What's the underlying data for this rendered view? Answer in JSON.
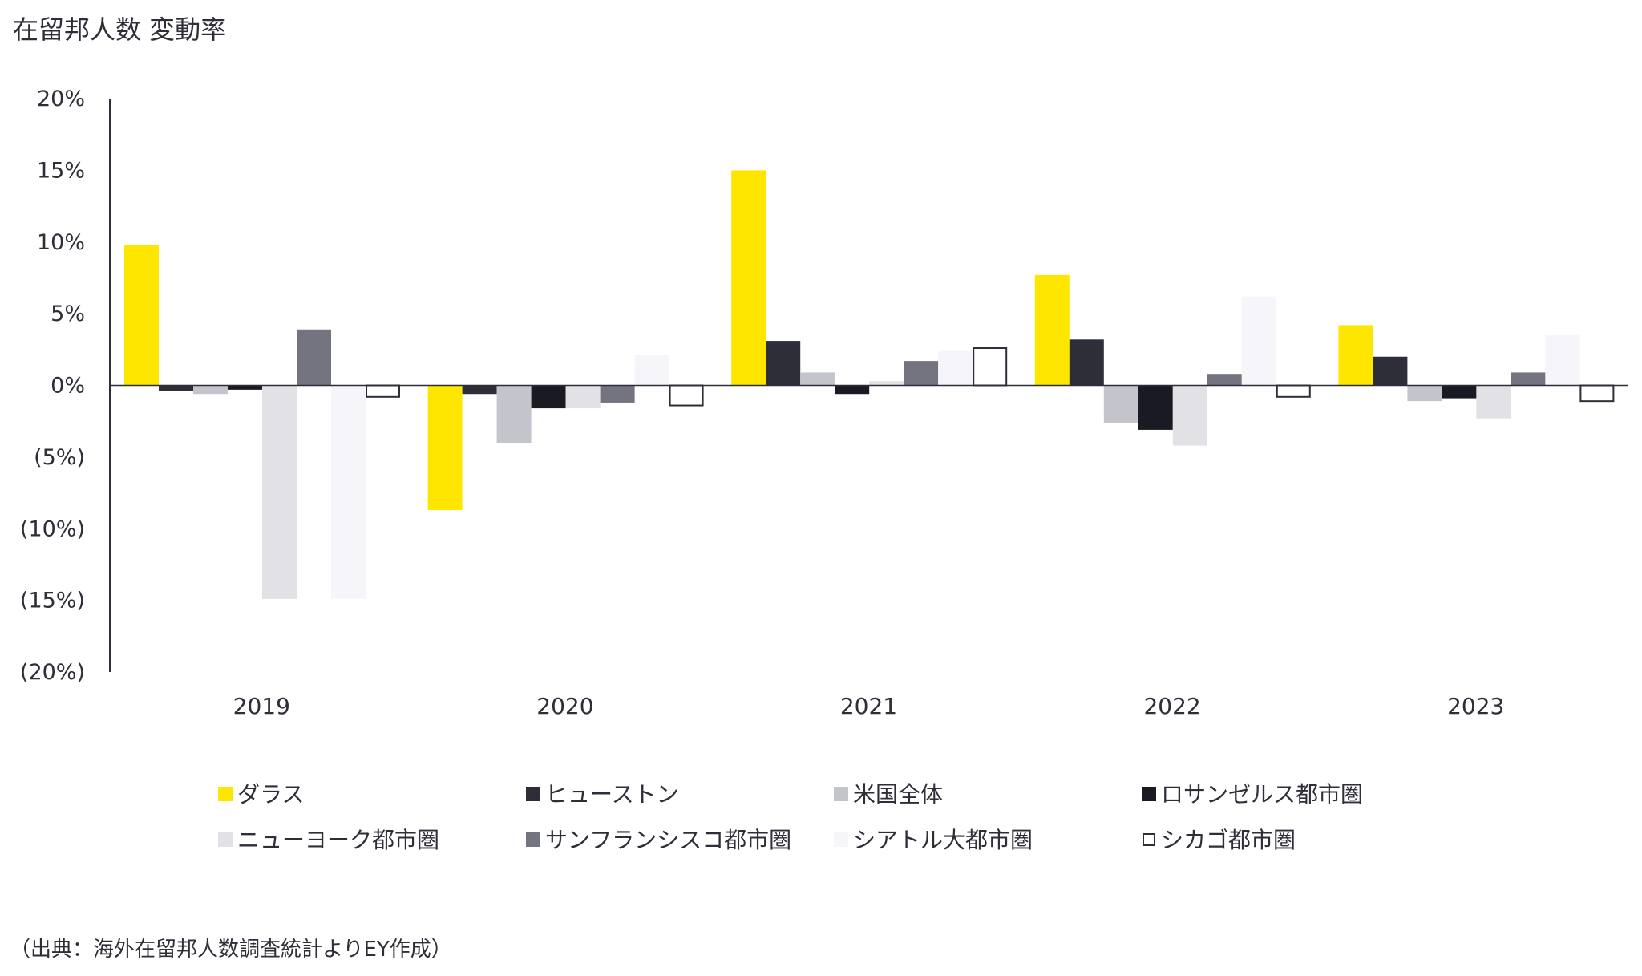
{
  "chart_data": {
    "type": "bar",
    "title": "在留邦人数 変動率",
    "categories": [
      "2019",
      "2020",
      "2021",
      "2022",
      "2023"
    ],
    "y_tick_labels": [
      "20%",
      "15%",
      "10%",
      "5%",
      "0%",
      "(5%)",
      "(10%)",
      "(15%)",
      "(20%)"
    ],
    "y_tick_values": [
      20,
      15,
      10,
      5,
      0,
      -5,
      -10,
      -15,
      -20
    ],
    "ylim": [
      -20,
      20
    ],
    "legend_position": "bottom",
    "grid": false,
    "series": [
      {
        "name": "ダラス",
        "color": "#ffe600",
        "values": [
          9.8,
          -8.7,
          15.0,
          7.7,
          4.2
        ]
      },
      {
        "name": "ヒューストン",
        "color": "#2e2e38",
        "values": [
          -0.4,
          -0.6,
          3.1,
          3.2,
          2.0
        ]
      },
      {
        "name": "米国全体",
        "color": "#c4c4cd",
        "values": [
          -0.6,
          -4.0,
          0.9,
          -2.6,
          -1.1
        ]
      },
      {
        "name": "ロサンゼルス都市圏",
        "color": "#1a1a24",
        "values": [
          -0.3,
          -1.6,
          -0.6,
          -3.1,
          -0.9
        ]
      },
      {
        "name": "ニューヨーク都市圏",
        "color": "#e1e1e6",
        "values": [
          -14.9,
          -1.6,
          0.3,
          -4.2,
          -2.3
        ]
      },
      {
        "name": "サンフランシスコ都市圏",
        "color": "#747480",
        "values": [
          3.9,
          -1.2,
          1.7,
          0.8,
          0.9
        ]
      },
      {
        "name": "シアトル大都市圏",
        "color": "#f6f6fa",
        "values": [
          -14.9,
          2.1,
          2.4,
          6.2,
          3.5
        ]
      },
      {
        "name": "シカゴ都市圏",
        "color": "#ffffff",
        "stroke": "#2e2e38",
        "values": [
          -0.8,
          -1.4,
          2.6,
          -0.8,
          -1.1
        ]
      }
    ]
  },
  "source_note": "（出典：海外在留邦人数調査統計よりEY作成）"
}
